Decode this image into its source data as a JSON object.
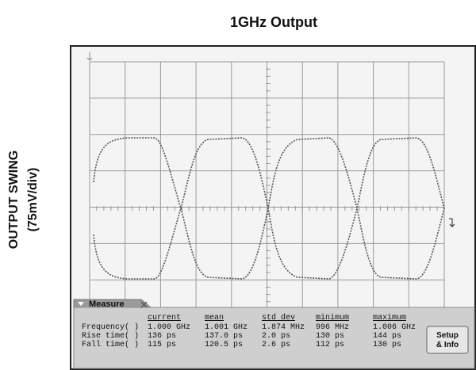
{
  "title": "1GHz Output",
  "y_axis_label": [
    "OUTPUT SWING",
    "(75mV/div)"
  ],
  "measure": {
    "tab": "Measure",
    "columns": [
      "current",
      "mean",
      "std dev",
      "minimum",
      "maximum"
    ],
    "rows": [
      {
        "label": "Frequency( )",
        "cells": [
          "1.000 GHz",
          "1.001 GHz",
          "1.874 MHz",
          "996 MHz",
          "1.006 GHz"
        ]
      },
      {
        "label": "Rise time( )",
        "cells": [
          "136 ps",
          "137.0 ps",
          "2.0 ps",
          "130 ps",
          "144 ps"
        ]
      },
      {
        "label": "Fall time( )",
        "cells": [
          "115 ps",
          "120.5 ps",
          "2.6 ps",
          "112 ps",
          "130 ps"
        ]
      }
    ],
    "button": [
      "Setup",
      "& Info"
    ]
  }
}
